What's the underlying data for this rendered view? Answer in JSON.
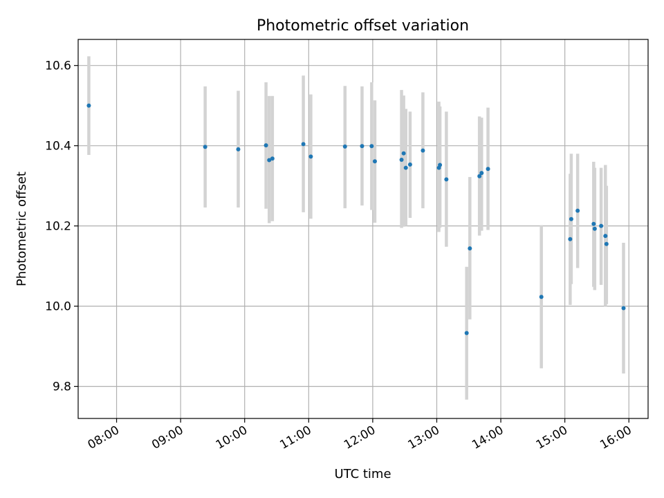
{
  "chart_data": {
    "type": "scatter",
    "title": "Photometric offset variation",
    "xlabel": "UTC time",
    "ylabel": "Photometric offset",
    "xlim": [
      "07:24",
      "16:18"
    ],
    "ylim": [
      9.72,
      10.665
    ],
    "x_ticks": [
      "08:00",
      "09:00",
      "10:00",
      "11:00",
      "12:00",
      "13:00",
      "14:00",
      "15:00",
      "16:00"
    ],
    "y_ticks": [
      9.8,
      10.0,
      10.2,
      10.4,
      10.6
    ],
    "y_tick_labels": [
      "9.8",
      "10.0",
      "10.2",
      "10.4",
      "10.6"
    ],
    "grid": true,
    "colors": {
      "points": "#1f77b4",
      "error_bars": "#d3d3d3"
    },
    "series": [
      {
        "points": [
          {
            "x": "07:34",
            "y": 10.5,
            "lo": 10.377,
            "hi": 10.623
          },
          {
            "x": "09:23",
            "y": 10.397,
            "lo": 10.246,
            "hi": 10.548
          },
          {
            "x": "09:54",
            "y": 10.391,
            "lo": 10.246,
            "hi": 10.537
          },
          {
            "x": "10:20",
            "y": 10.401,
            "lo": 10.243,
            "hi": 10.558
          },
          {
            "x": "10:23",
            "y": 10.364,
            "lo": 10.207,
            "hi": 10.524
          },
          {
            "x": "10:26",
            "y": 10.368,
            "lo": 10.212,
            "hi": 10.524
          },
          {
            "x": "10:55",
            "y": 10.404,
            "lo": 10.234,
            "hi": 10.575
          },
          {
            "x": "11:02",
            "y": 10.373,
            "lo": 10.218,
            "hi": 10.528
          },
          {
            "x": "11:34",
            "y": 10.398,
            "lo": 10.244,
            "hi": 10.549
          },
          {
            "x": "11:50",
            "y": 10.399,
            "lo": 10.251,
            "hi": 10.548
          },
          {
            "x": "11:59",
            "y": 10.399,
            "lo": 10.24,
            "hi": 10.558
          },
          {
            "x": "12:02",
            "y": 10.361,
            "lo": 10.208,
            "hi": 10.513
          },
          {
            "x": "12:27",
            "y": 10.365,
            "lo": 10.195,
            "hi": 10.539
          },
          {
            "x": "12:29",
            "y": 10.381,
            "lo": 10.198,
            "hi": 10.525
          },
          {
            "x": "12:31",
            "y": 10.345,
            "lo": 10.2,
            "hi": 10.492
          },
          {
            "x": "12:35",
            "y": 10.353,
            "lo": 10.22,
            "hi": 10.485
          },
          {
            "x": "12:47",
            "y": 10.388,
            "lo": 10.244,
            "hi": 10.533
          },
          {
            "x": "13:02",
            "y": 10.345,
            "lo": 10.185,
            "hi": 10.51
          },
          {
            "x": "13:03",
            "y": 10.352,
            "lo": 10.196,
            "hi": 10.498
          },
          {
            "x": "13:09",
            "y": 10.316,
            "lo": 10.148,
            "hi": 10.485
          },
          {
            "x": "13:28",
            "y": 9.933,
            "lo": 9.767,
            "hi": 10.098
          },
          {
            "x": "13:31",
            "y": 10.144,
            "lo": 9.967,
            "hi": 10.322
          },
          {
            "x": "13:40",
            "y": 10.324,
            "lo": 10.176,
            "hi": 10.473
          },
          {
            "x": "13:42",
            "y": 10.332,
            "lo": 10.188,
            "hi": 10.47
          },
          {
            "x": "13:48",
            "y": 10.342,
            "lo": 10.19,
            "hi": 10.495
          },
          {
            "x": "14:38",
            "y": 10.023,
            "lo": 9.845,
            "hi": 10.202
          },
          {
            "x": "15:05",
            "y": 10.167,
            "lo": 10.003,
            "hi": 10.33
          },
          {
            "x": "15:06",
            "y": 10.217,
            "lo": 10.055,
            "hi": 10.38
          },
          {
            "x": "15:12",
            "y": 10.238,
            "lo": 10.095,
            "hi": 10.38
          },
          {
            "x": "15:27",
            "y": 10.205,
            "lo": 10.048,
            "hi": 10.36
          },
          {
            "x": "15:28",
            "y": 10.193,
            "lo": 10.04,
            "hi": 10.345
          },
          {
            "x": "15:34",
            "y": 10.2,
            "lo": 10.053,
            "hi": 10.345
          },
          {
            "x": "15:38",
            "y": 10.175,
            "lo": 10.0,
            "hi": 10.352
          },
          {
            "x": "15:39",
            "y": 10.155,
            "lo": 10.005,
            "hi": 10.3
          },
          {
            "x": "15:55",
            "y": 9.995,
            "lo": 9.832,
            "hi": 10.158
          }
        ]
      }
    ]
  }
}
